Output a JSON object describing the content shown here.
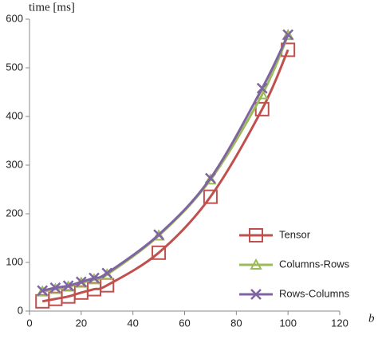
{
  "chart_data": {
    "type": "line",
    "y_label": "time [ms]",
    "x_label": "b",
    "x": [
      5,
      10,
      15,
      20,
      25,
      30,
      50,
      70,
      90,
      100
    ],
    "series": [
      {
        "name": "Tensor",
        "color": "#c0504d",
        "marker": "square",
        "values": [
          20,
          25,
          30,
          38,
          45,
          53,
          120,
          235,
          415,
          537
        ]
      },
      {
        "name": "Columns-Rows",
        "color": "#9bbb59",
        "marker": "triangle",
        "values": [
          40,
          45,
          50,
          58,
          65,
          75,
          155,
          270,
          445,
          567
        ]
      },
      {
        "name": "Rows-Columns",
        "color": "#8064a2",
        "marker": "x",
        "values": [
          42,
          48,
          52,
          60,
          68,
          78,
          157,
          273,
          458,
          568
        ]
      }
    ],
    "xlim": [
      0,
      120
    ],
    "xticks": [
      0,
      20,
      40,
      60,
      80,
      100,
      120
    ],
    "ylim": [
      0,
      600
    ],
    "yticks": [
      0,
      100,
      200,
      300,
      400,
      500,
      600
    ],
    "grid": false,
    "legend": "lower right"
  }
}
